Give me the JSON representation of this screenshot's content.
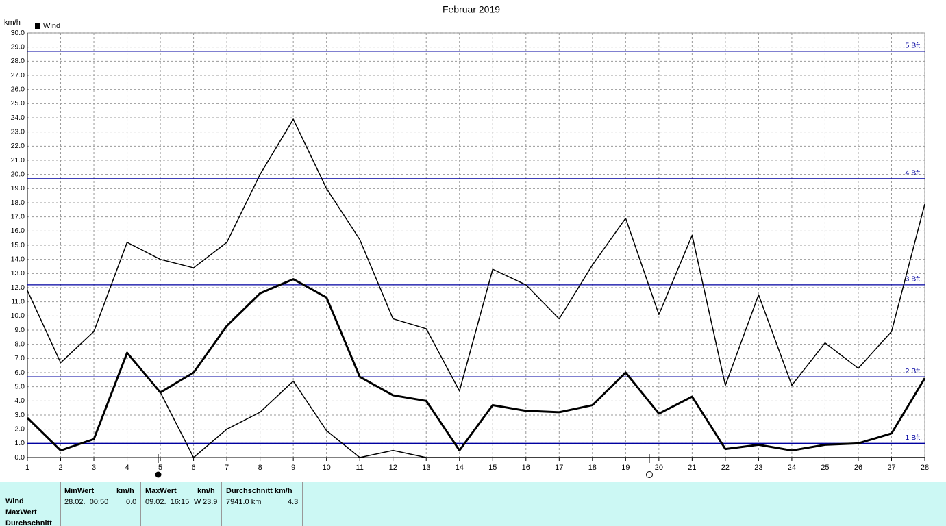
{
  "chart_data": {
    "type": "line",
    "title": "Februar 2019",
    "y_label": "km/h",
    "legend": [
      "Wind"
    ],
    "x": [
      1,
      2,
      3,
      4,
      5,
      6,
      7,
      8,
      9,
      10,
      11,
      12,
      13,
      14,
      15,
      16,
      17,
      18,
      19,
      20,
      21,
      22,
      23,
      24,
      25,
      26,
      27,
      28
    ],
    "series": [
      {
        "color": "#000000",
        "values": [
          11.8,
          6.7,
          8.9,
          15.2,
          14.0,
          13.4,
          15.2,
          20.0,
          23.9,
          19.0,
          15.4,
          9.8,
          9.1,
          4.7,
          13.3,
          12.2,
          9.8,
          13.6,
          16.9,
          10.1,
          15.7,
          5.1,
          11.5,
          5.1,
          8.1,
          6.3,
          8.9,
          17.9
        ]
      },
      {
        "color": "#000000",
        "values": [
          2.8,
          0.5,
          1.3,
          7.4,
          4.6,
          6.0,
          9.3,
          11.6,
          12.6,
          11.3,
          5.7,
          4.4,
          4.0,
          0.5,
          3.7,
          3.3,
          3.2,
          3.7,
          6.0,
          3.1,
          4.3,
          0.6,
          0.9,
          0.5,
          0.9,
          1.0,
          1.7,
          5.6
        ]
      },
      {
        "color": "#000000",
        "values": [
          2.8,
          0.5,
          1.3,
          7.4,
          4.6,
          0.0,
          2.0,
          3.2,
          5.4,
          1.9,
          0.0,
          0.5,
          0.0,
          0.0,
          0.0,
          0.0,
          0.0,
          0.0,
          0.0,
          0.0,
          0.0,
          0.0,
          0.0,
          0.0,
          0.0,
          0.0,
          0.0,
          0.0
        ]
      }
    ],
    "reference_lines": [
      {
        "value": 1.0,
        "label": "1 Bft."
      },
      {
        "value": 5.7,
        "label": "2 Bft."
      },
      {
        "value": 12.2,
        "label": "3 Bft."
      },
      {
        "value": 19.7,
        "label": "4 Bft."
      },
      {
        "value": 28.7,
        "label": "5 Bft."
      }
    ],
    "reference_color": "#0000a0",
    "xlim": [
      1,
      28
    ],
    "xticks": [
      1,
      2,
      3,
      4,
      5,
      6,
      7,
      8,
      9,
      10,
      11,
      12,
      13,
      14,
      15,
      16,
      17,
      18,
      19,
      20,
      21,
      22,
      23,
      24,
      25,
      26,
      27,
      28
    ],
    "ylim": [
      0,
      30
    ],
    "yticks": [
      {
        "value": 0,
        "label": "0.0"
      },
      {
        "value": 1,
        "label": "1.0"
      },
      {
        "value": 2,
        "label": "2.0"
      },
      {
        "value": 3,
        "label": "3.0"
      },
      {
        "value": 4,
        "label": "4.0"
      },
      {
        "value": 5,
        "label": "5.0"
      },
      {
        "value": 6,
        "label": "6.0"
      },
      {
        "value": 7,
        "label": "7.0"
      },
      {
        "value": 8,
        "label": "8.0"
      },
      {
        "value": 9,
        "label": "9.0"
      },
      {
        "value": 10,
        "label": "10.0"
      },
      {
        "value": 11,
        "label": "11.0"
      },
      {
        "value": 12,
        "label": "12.0"
      },
      {
        "value": 13,
        "label": "13.0"
      },
      {
        "value": 14,
        "label": "14.0"
      },
      {
        "value": 15,
        "label": "15.0"
      },
      {
        "value": 16,
        "label": "16.0"
      },
      {
        "value": 17,
        "label": "17.0"
      },
      {
        "value": 18,
        "label": "18.0"
      },
      {
        "value": 19,
        "label": "19.0"
      },
      {
        "value": 20,
        "label": "20.0"
      },
      {
        "value": 21,
        "label": "21.0"
      },
      {
        "value": 22,
        "label": "22.0"
      },
      {
        "value": 23,
        "label": "23.0"
      },
      {
        "value": 24,
        "label": "24.0"
      },
      {
        "value": 25,
        "label": "25.0"
      },
      {
        "value": 26,
        "label": "26.0"
      },
      {
        "value": 27,
        "label": "27.0"
      },
      {
        "value": 28,
        "label": "28.0"
      },
      {
        "value": 29,
        "label": "29.0"
      },
      {
        "value": 30,
        "label": "30.0"
      }
    ],
    "grid": true
  },
  "summary_table": {
    "header": [
      "MinWert",
      "km/h",
      "MaxWert",
      "km/h",
      "Durchschnitt km/h"
    ],
    "row_labels": [
      "Wind",
      "MaxWert",
      "Durchschnitt"
    ],
    "wind_row": [
      "28.02.  00:50",
      "0.0",
      "09.02.  16:15",
      "W",
      "23.9",
      "7941.0 km",
      "4.3"
    ]
  }
}
